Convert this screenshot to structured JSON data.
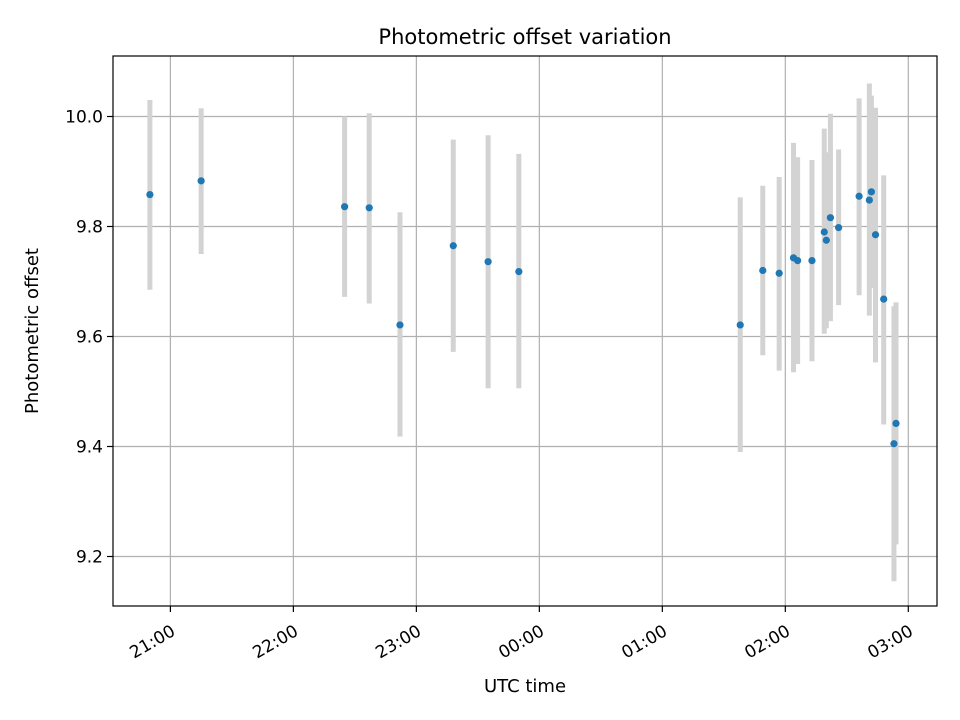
{
  "chart_data": {
    "type": "scatter",
    "title": "Photometric offset variation",
    "xlabel": "UTC time",
    "ylabel": "Photometric offset",
    "x_ticks": [
      "21:00",
      "22:00",
      "23:00",
      "00:00",
      "01:00",
      "02:00",
      "03:00"
    ],
    "y_ticks": [
      "9.2",
      "9.4",
      "9.6",
      "9.8",
      "10.0"
    ],
    "xlim": [
      "20:32",
      "03:14"
    ],
    "ylim": [
      9.11,
      10.11
    ],
    "grid": true,
    "marker_color": "#1f77b4",
    "errorbar_color": "#d3d3d3",
    "points": [
      {
        "t": "20:50",
        "y": 9.858,
        "lo": 9.685,
        "hi": 10.03
      },
      {
        "t": "21:15",
        "y": 9.883,
        "lo": 9.75,
        "hi": 10.015
      },
      {
        "t": "22:25",
        "y": 9.836,
        "lo": 9.672,
        "hi": 10.0
      },
      {
        "t": "22:37",
        "y": 9.834,
        "lo": 9.66,
        "hi": 10.006
      },
      {
        "t": "22:52",
        "y": 9.621,
        "lo": 9.418,
        "hi": 9.826
      },
      {
        "t": "23:18",
        "y": 9.765,
        "lo": 9.572,
        "hi": 9.958
      },
      {
        "t": "23:35",
        "y": 9.736,
        "lo": 9.506,
        "hi": 9.966
      },
      {
        "t": "23:50",
        "y": 9.718,
        "lo": 9.506,
        "hi": 9.932
      },
      {
        "t": "01:38",
        "y": 9.621,
        "lo": 9.39,
        "hi": 9.853
      },
      {
        "t": "01:49",
        "y": 9.72,
        "lo": 9.566,
        "hi": 9.874
      },
      {
        "t": "01:57",
        "y": 9.715,
        "lo": 9.538,
        "hi": 9.89
      },
      {
        "t": "02:04",
        "y": 9.743,
        "lo": 9.535,
        "hi": 9.952
      },
      {
        "t": "02:06",
        "y": 9.738,
        "lo": 9.55,
        "hi": 9.926
      },
      {
        "t": "02:13",
        "y": 9.738,
        "lo": 9.555,
        "hi": 9.921
      },
      {
        "t": "02:19",
        "y": 9.79,
        "lo": 9.605,
        "hi": 9.978
      },
      {
        "t": "02:20",
        "y": 9.775,
        "lo": 9.615,
        "hi": 9.935
      },
      {
        "t": "02:22",
        "y": 9.816,
        "lo": 9.628,
        "hi": 10.005
      },
      {
        "t": "02:26",
        "y": 9.798,
        "lo": 9.657,
        "hi": 9.94
      },
      {
        "t": "02:36",
        "y": 9.855,
        "lo": 9.675,
        "hi": 10.033
      },
      {
        "t": "02:41",
        "y": 9.848,
        "lo": 9.638,
        "hi": 10.06
      },
      {
        "t": "02:42",
        "y": 9.863,
        "lo": 9.688,
        "hi": 10.038
      },
      {
        "t": "02:44",
        "y": 9.785,
        "lo": 9.553,
        "hi": 10.016
      },
      {
        "t": "02:48",
        "y": 9.668,
        "lo": 9.44,
        "hi": 9.893
      },
      {
        "t": "02:53",
        "y": 9.405,
        "lo": 9.155,
        "hi": 9.655
      },
      {
        "t": "02:54",
        "y": 9.442,
        "lo": 9.222,
        "hi": 9.662
      }
    ]
  }
}
